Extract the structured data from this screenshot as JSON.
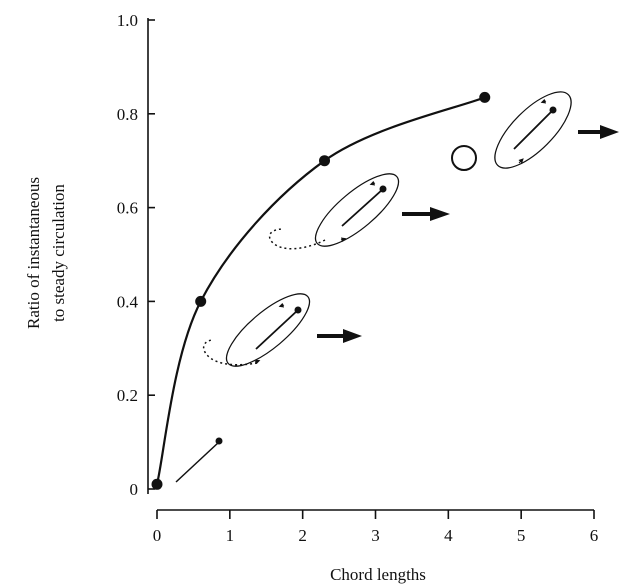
{
  "chart_data": {
    "type": "line",
    "xlabel": "Chord lengths",
    "ylabel_lines": [
      "Ratio of instantaneous",
      "to steady circulation"
    ],
    "xlim": [
      0,
      6
    ],
    "ylim": [
      0,
      1.0
    ],
    "x_ticks": [
      0,
      1,
      2,
      3,
      4,
      5,
      6
    ],
    "y_ticks": [
      0,
      0.2,
      0.4,
      0.6,
      0.8,
      1.0
    ],
    "x_tick_labels": [
      "0",
      "1",
      "2",
      "3",
      "4",
      "5",
      "6"
    ],
    "y_tick_labels": [
      "0",
      "0.2",
      "0.4",
      "0.6",
      "0.8",
      "1.0"
    ],
    "grid": false,
    "series": [
      {
        "x": [
          0,
          0.6,
          2.3,
          4.5
        ],
        "y": [
          0.01,
          0.4,
          0.7,
          0.835
        ]
      }
    ],
    "curve_color": "#111111"
  }
}
